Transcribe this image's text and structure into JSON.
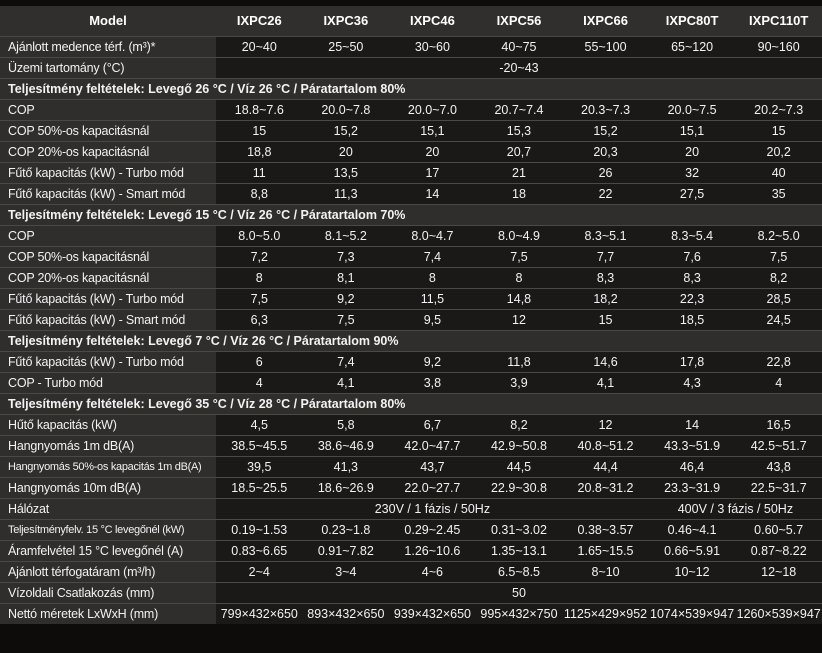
{
  "table": {
    "header": {
      "model_label": "Model",
      "models": [
        "IXPC26",
        "IXPC36",
        "IXPC46",
        "IXPC56",
        "IXPC66",
        "IXPC80T",
        "IXPC110T"
      ]
    },
    "rows": [
      {
        "type": "data",
        "label": "Ajánlott medence térf. (m³)*",
        "values": [
          "20~40",
          "25~50",
          "30~60",
          "40~75",
          "55~100",
          "65~120",
          "90~160"
        ]
      },
      {
        "type": "span",
        "label": "Üzemi tartomány (°C)",
        "spans": [
          {
            "text": "-20~43",
            "cols": 7
          }
        ]
      },
      {
        "type": "section",
        "label": "Teljesítmény feltételek: Levegő 26 °C / Víz 26 °C / Páratartalom 80%"
      },
      {
        "type": "data",
        "label": "COP",
        "values": [
          "18.8~7.6",
          "20.0~7.8",
          "20.0~7.0",
          "20.7~7.4",
          "20.3~7.3",
          "20.0~7.5",
          "20.2~7.3"
        ]
      },
      {
        "type": "data",
        "label": "COP 50%-os kapacitásnál",
        "values": [
          "15",
          "15,2",
          "15,1",
          "15,3",
          "15,2",
          "15,1",
          "15"
        ]
      },
      {
        "type": "data",
        "label": "COP 20%-os kapacitásnál",
        "values": [
          "18,8",
          "20",
          "20",
          "20,7",
          "20,3",
          "20",
          "20,2"
        ]
      },
      {
        "type": "data",
        "label": "Fűtő kapacitás (kW) - Turbo mód",
        "values": [
          "11",
          "13,5",
          "17",
          "21",
          "26",
          "32",
          "40"
        ]
      },
      {
        "type": "data",
        "label": "Fűtő kapacitás (kW) - Smart mód",
        "values": [
          "8,8",
          "11,3",
          "14",
          "18",
          "22",
          "27,5",
          "35"
        ]
      },
      {
        "type": "section",
        "label": "Teljesítmény feltételek: Levegő 15 °C / Víz 26 °C / Páratartalom 70%"
      },
      {
        "type": "data",
        "label": "COP",
        "values": [
          "8.0~5.0",
          "8.1~5.2",
          "8.0~4.7",
          "8.0~4.9",
          "8.3~5.1",
          "8.3~5.4",
          "8.2~5.0"
        ]
      },
      {
        "type": "data",
        "label": "COP 50%-os kapacitásnál",
        "values": [
          "7,2",
          "7,3",
          "7,4",
          "7,5",
          "7,7",
          "7,6",
          "7,5"
        ]
      },
      {
        "type": "data",
        "label": "COP 20%-os kapacitásnál",
        "values": [
          "8",
          "8,1",
          "8",
          "8",
          "8,3",
          "8,3",
          "8,2"
        ]
      },
      {
        "type": "data",
        "label": "Fűtő kapacitás (kW) - Turbo mód",
        "values": [
          "7,5",
          "9,2",
          "11,5",
          "14,8",
          "18,2",
          "22,3",
          "28,5"
        ]
      },
      {
        "type": "data",
        "label": "Fűtő kapacitás (kW) - Smart mód",
        "values": [
          "6,3",
          "7,5",
          "9,5",
          "12",
          "15",
          "18,5",
          "24,5"
        ]
      },
      {
        "type": "section",
        "label": "Teljesítmény feltételek: Levegő 7 °C / Víz 26 °C / Páratartalom 90%"
      },
      {
        "type": "data",
        "label": "Fűtő kapacitás (kW) - Turbo mód",
        "values": [
          "6",
          "7,4",
          "9,2",
          "11,8",
          "14,6",
          "17,8",
          "22,8"
        ]
      },
      {
        "type": "data",
        "label": "COP - Turbo mód",
        "values": [
          "4",
          "4,1",
          "3,8",
          "3,9",
          "4,1",
          "4,3",
          "4"
        ]
      },
      {
        "type": "section",
        "label": "Teljesítmény feltételek: Levegő 35 °C / Víz 28 °C / Páratartalom 80%"
      },
      {
        "type": "data",
        "label": "Hűtő kapacitás (kW)",
        "values": [
          "4,5",
          "5,8",
          "6,7",
          "8,2",
          "12",
          "14",
          "16,5"
        ]
      },
      {
        "type": "data",
        "label": "Hangnyomás 1m dB(A)",
        "values": [
          "38.5~45.5",
          "38.6~46.9",
          "42.0~47.7",
          "42.9~50.8",
          "40.8~51.2",
          "43.3~51.9",
          "42.5~51.7"
        ]
      },
      {
        "type": "data",
        "label": "Hangnyomás 50%-os kapacitás 1m dB(A)",
        "values": [
          "39,5",
          "41,3",
          "43,7",
          "44,5",
          "44,4",
          "46,4",
          "43,8"
        ]
      },
      {
        "type": "data",
        "label": "Hangnyomás 10m dB(A)",
        "values": [
          "18.5~25.5",
          "18.6~26.9",
          "22.0~27.7",
          "22.9~30.8",
          "20.8~31.2",
          "23.3~31.9",
          "22.5~31.7"
        ]
      },
      {
        "type": "span",
        "label": "Hálózat",
        "spans": [
          {
            "text": "230V / 1 fázis / 50Hz",
            "cols": 5
          },
          {
            "text": "400V / 3 fázis / 50Hz",
            "cols": 2
          }
        ]
      },
      {
        "type": "data",
        "label": "Teljesítményfelv. 15 °C levegőnél (kW)",
        "values": [
          "0.19~1.53",
          "0.23~1.8",
          "0.29~2.45",
          "0.31~3.02",
          "0.38~3.57",
          "0.46~4.1",
          "0.60~5.7"
        ]
      },
      {
        "type": "data",
        "label": "Áramfelvétel 15 °C levegőnél (A)",
        "values": [
          "0.83~6.65",
          "0.91~7.82",
          "1.26~10.6",
          "1.35~13.1",
          "1.65~15.5",
          "0.66~5.91",
          "0.87~8.22"
        ]
      },
      {
        "type": "data",
        "label": "Ajánlott térfogatáram (m³/h)",
        "values": [
          "2~4",
          "3~4",
          "4~6",
          "6.5~8.5",
          "8~10",
          "10~12",
          "12~18"
        ]
      },
      {
        "type": "span",
        "label": "Vízoldali Csatlakozás (mm)",
        "spans": [
          {
            "text": "50",
            "cols": 7
          }
        ]
      },
      {
        "type": "data",
        "label": "Nettó méretek LxWxH (mm)",
        "values": [
          "799×432×650",
          "893×432×650",
          "939×432×650",
          "995×432×750",
          "1125×429×952",
          "1074×539×947",
          "1260×539×947"
        ]
      }
    ],
    "colors": {
      "frame_bg": "#0d0c0b",
      "header_bg": "#312f2d",
      "label_cell_bg": "#302e2c",
      "section_bg": "#302e2c",
      "data_cell_bg": "#1b1918",
      "row_divider": "#4b4946",
      "text": "#f2f2f2"
    }
  }
}
